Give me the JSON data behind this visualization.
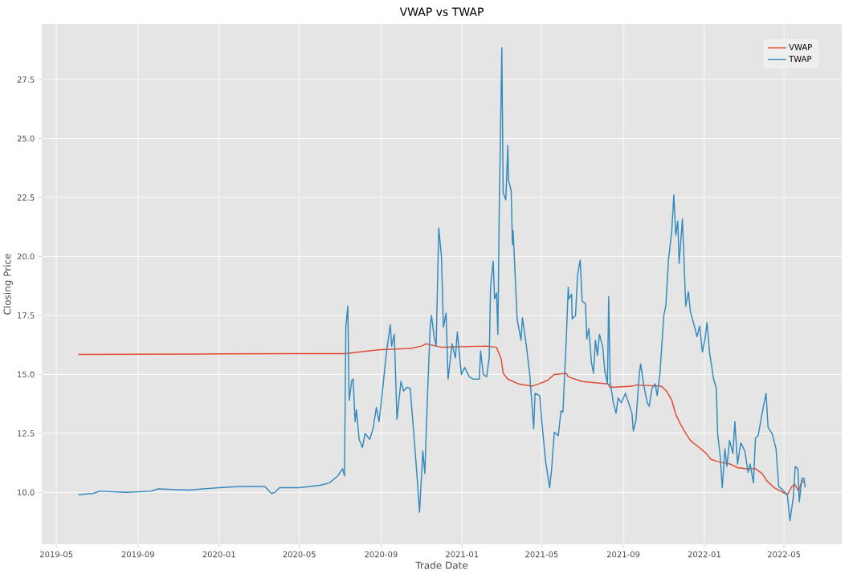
{
  "chart_data": {
    "type": "line",
    "title": "VWAP vs TWAP",
    "xlabel": "Trade Date",
    "ylabel": "Closing Price",
    "xlim": [
      "2019-04-09",
      "2022-07-27"
    ],
    "ylim": [
      7.8,
      29.85
    ],
    "xticks": [
      {
        "value": "2019-05",
        "label": "2019-05"
      },
      {
        "value": "2019-09",
        "label": "2019-09"
      },
      {
        "value": "2020-01",
        "label": "2020-01"
      },
      {
        "value": "2020-05",
        "label": "2020-05"
      },
      {
        "value": "2020-09",
        "label": "2020-09"
      },
      {
        "value": "2021-01",
        "label": "2021-01"
      },
      {
        "value": "2021-05",
        "label": "2021-05"
      },
      {
        "value": "2021-09",
        "label": "2021-09"
      },
      {
        "value": "2022-01",
        "label": "2022-01"
      },
      {
        "value": "2022-05",
        "label": "2022-05"
      }
    ],
    "yticks": [
      {
        "value": 10,
        "label": "10.0"
      },
      12.5,
      {
        "value": 15,
        "label": "15.0"
      },
      17.5,
      {
        "value": 20,
        "label": "20.0"
      },
      22.5,
      {
        "value": 25,
        "label": "25.0"
      },
      27.5
    ],
    "grid": true,
    "legend": "top right",
    "line_style": "solid",
    "series": [
      {
        "name": "VWAP",
        "color": "#e24a33",
        "x": [
          "2019-06-03",
          "2020-01-02",
          "2020-05-08",
          "2020-07-09",
          "2020-08-15",
          "2020-08-31",
          "2020-10-16",
          "2020-11-01",
          "2020-11-08",
          "2020-11-23",
          "2020-12-02",
          "2021-02-07",
          "2021-02-22",
          "2021-03-01",
          "2021-03-04",
          "2021-03-11",
          "2021-03-27",
          "2021-04-16",
          "2021-04-27",
          "2021-05-10",
          "2021-05-20",
          "2021-06-07",
          "2021-06-10",
          "2021-07-01",
          "2021-08-09",
          "2021-08-12",
          "2021-09-14",
          "2021-09-20",
          "2021-10-28",
          "2021-11-05",
          "2021-11-13",
          "2021-11-19",
          "2021-11-26",
          "2021-12-04",
          "2021-12-11",
          "2021-12-22",
          "2022-01-04",
          "2022-01-11",
          "2022-01-22",
          "2022-02-09",
          "2022-02-20",
          "2022-03-05",
          "2022-03-19",
          "2022-03-29",
          "2022-04-05",
          "2022-04-16",
          "2022-05-06",
          "2022-05-13",
          "2022-05-17",
          "2022-05-23",
          "2022-05-28",
          "2022-06-01"
        ],
        "values": [
          15.85,
          15.87,
          15.88,
          15.88,
          16.0,
          16.05,
          16.1,
          16.2,
          16.3,
          16.2,
          16.15,
          16.2,
          16.15,
          15.65,
          15.05,
          14.8,
          14.6,
          14.5,
          14.6,
          14.75,
          15.0,
          15.05,
          14.9,
          14.7,
          14.6,
          14.45,
          14.5,
          14.55,
          14.5,
          14.3,
          13.9,
          13.3,
          12.9,
          12.5,
          12.2,
          11.95,
          11.65,
          11.4,
          11.3,
          11.2,
          11.05,
          11.0,
          11.0,
          10.8,
          10.5,
          10.2,
          9.9,
          10.25,
          10.35,
          10.05,
          10.5,
          10.4
        ]
      },
      {
        "name": "TWAP",
        "color": "#348abd",
        "x": [
          "2019-06-03",
          "2019-06-25",
          "2019-07-05",
          "2019-08-15",
          "2019-09-20",
          "2019-10-01",
          "2019-11-15",
          "2020-01-01",
          "2020-02-01",
          "2020-03-10",
          "2020-03-20",
          "2020-03-25",
          "2020-04-01",
          "2020-05-01",
          "2020-06-01",
          "2020-06-15",
          "2020-06-28",
          "2020-07-05",
          "2020-07-08",
          "2020-07-10",
          "2020-07-13",
          "2020-07-15",
          "2020-07-19",
          "2020-07-21",
          "2020-07-24",
          "2020-07-26",
          "2020-07-30",
          "2020-08-04",
          "2020-08-08",
          "2020-08-15",
          "2020-08-20",
          "2020-08-25",
          "2020-08-29",
          "2020-09-03",
          "2020-09-09",
          "2020-09-15",
          "2020-09-17",
          "2020-09-21",
          "2020-09-25",
          "2020-10-01",
          "2020-10-05",
          "2020-10-10",
          "2020-10-15",
          "2020-10-21",
          "2020-10-26",
          "2020-10-29",
          "2020-11-03",
          "2020-11-06",
          "2020-11-10",
          "2020-11-14",
          "2020-11-16",
          "2020-11-20",
          "2020-11-23",
          "2020-11-27",
          "2020-12-01",
          "2020-12-04",
          "2020-12-08",
          "2020-12-11",
          "2020-12-17",
          "2020-12-22",
          "2020-12-25",
          "2020-12-31",
          "2021-01-05",
          "2021-01-12",
          "2021-01-18",
          "2021-01-27",
          "2021-01-29",
          "2021-02-02",
          "2021-02-07",
          "2021-02-11",
          "2021-02-13",
          "2021-02-17",
          "2021-02-19",
          "2021-02-22",
          "2021-02-24",
          "2021-02-26",
          "2021-03-02",
          "2021-03-04",
          "2021-03-08",
          "2021-03-11",
          "2021-03-12",
          "2021-03-16",
          "2021-03-18",
          "2021-03-19",
          "2021-03-25",
          "2021-03-31",
          "2021-04-02",
          "2021-04-08",
          "2021-04-13",
          "2021-04-19",
          "2021-04-21",
          "2021-04-28",
          "2021-05-02",
          "2021-05-07",
          "2021-05-13",
          "2021-05-16",
          "2021-05-20",
          "2021-05-26",
          "2021-05-30",
          "2021-06-02",
          "2021-06-07",
          "2021-06-10",
          "2021-06-11",
          "2021-06-15",
          "2021-06-16",
          "2021-06-21",
          "2021-06-24",
          "2021-06-28",
          "2021-07-01",
          "2021-07-06",
          "2021-07-08",
          "2021-07-11",
          "2021-07-15",
          "2021-07-18",
          "2021-07-21",
          "2021-07-24",
          "2021-07-27",
          "2021-08-01",
          "2021-08-04",
          "2021-08-08",
          "2021-08-10",
          "2021-08-12",
          "2021-08-17",
          "2021-08-21",
          "2021-08-24",
          "2021-08-29",
          "2021-09-04",
          "2021-09-09",
          "2021-09-14",
          "2021-09-16",
          "2021-09-20",
          "2021-09-25",
          "2021-09-27",
          "2021-10-02",
          "2021-10-07",
          "2021-10-10",
          "2021-10-14",
          "2021-10-19",
          "2021-10-22",
          "2021-10-26",
          "2021-11-01",
          "2021-11-04",
          "2021-11-08",
          "2021-11-13",
          "2021-11-16",
          "2021-11-19",
          "2021-11-22",
          "2021-11-24",
          "2021-11-29",
          "2021-12-04",
          "2021-12-08",
          "2021-12-11",
          "2021-12-17",
          "2021-12-21",
          "2021-12-25",
          "2021-12-29",
          "2022-01-02",
          "2022-01-05",
          "2022-01-09",
          "2022-01-15",
          "2022-01-19",
          "2022-01-21",
          "2022-01-25",
          "2022-01-28",
          "2022-02-01",
          "2022-02-04",
          "2022-02-08",
          "2022-02-13",
          "2022-02-16",
          "2022-02-20",
          "2022-02-25",
          "2022-03-03",
          "2022-03-08",
          "2022-03-11",
          "2022-03-16",
          "2022-03-19",
          "2022-03-23",
          "2022-03-29",
          "2022-04-04",
          "2022-04-07",
          "2022-04-13",
          "2022-04-19",
          "2022-04-23",
          "2022-04-29",
          "2022-05-06",
          "2022-05-10",
          "2022-05-15",
          "2022-05-18",
          "2022-05-22",
          "2022-05-24",
          "2022-05-28",
          "2022-05-31",
          "2022-06-02"
        ],
        "values": [
          9.9,
          9.95,
          10.05,
          10.0,
          10.05,
          10.15,
          10.1,
          10.2,
          10.25,
          10.25,
          9.95,
          10.0,
          10.2,
          10.2,
          10.3,
          10.4,
          10.7,
          11.0,
          10.7,
          17.0,
          17.9,
          13.9,
          14.75,
          14.8,
          13.0,
          13.5,
          12.25,
          11.9,
          12.5,
          12.25,
          12.7,
          13.6,
          13.0,
          14.25,
          15.9,
          17.1,
          16.2,
          16.7,
          13.1,
          14.7,
          14.3,
          14.45,
          14.4,
          12.25,
          10.4,
          9.15,
          11.75,
          10.8,
          14.1,
          17.0,
          17.5,
          16.6,
          16.2,
          21.2,
          20.0,
          17.0,
          17.6,
          14.8,
          16.3,
          15.7,
          16.8,
          15.0,
          15.3,
          14.9,
          14.8,
          14.8,
          16.0,
          15.0,
          14.9,
          15.7,
          18.7,
          19.8,
          18.2,
          18.45,
          16.7,
          21.8,
          28.85,
          22.7,
          22.4,
          24.7,
          23.25,
          22.8,
          20.5,
          21.1,
          17.35,
          16.45,
          17.4,
          16.2,
          15.0,
          12.7,
          14.2,
          14.1,
          12.75,
          11.3,
          10.2,
          11.0,
          12.55,
          12.4,
          13.45,
          13.4,
          16.45,
          18.7,
          18.2,
          18.4,
          17.35,
          17.5,
          19.2,
          19.85,
          18.1,
          18.0,
          16.5,
          16.95,
          15.5,
          15.05,
          16.45,
          15.8,
          16.7,
          16.15,
          15.15,
          14.6,
          18.3,
          14.7,
          13.8,
          13.35,
          14.0,
          13.8,
          14.2,
          13.8,
          13.35,
          12.6,
          13.05,
          15.0,
          15.45,
          14.5,
          13.8,
          13.65,
          14.4,
          14.6,
          14.1,
          15.0,
          17.5,
          17.9,
          19.85,
          21.1,
          22.6,
          20.9,
          21.5,
          19.7,
          21.6,
          17.9,
          18.5,
          17.65,
          17.05,
          16.6,
          17.05,
          15.95,
          16.5,
          17.2,
          15.9,
          14.8,
          14.4,
          12.5,
          11.5,
          10.2,
          11.85,
          11.1,
          12.2,
          11.65,
          13.0,
          11.2,
          12.1,
          11.75,
          10.85,
          11.2,
          10.4,
          12.3,
          12.4,
          13.35,
          14.2,
          12.75,
          12.5,
          11.85,
          10.25,
          10.1,
          9.9,
          8.8,
          9.8,
          11.1,
          11.0,
          9.6,
          10.6,
          10.6,
          10.2
        ]
      }
    ]
  }
}
